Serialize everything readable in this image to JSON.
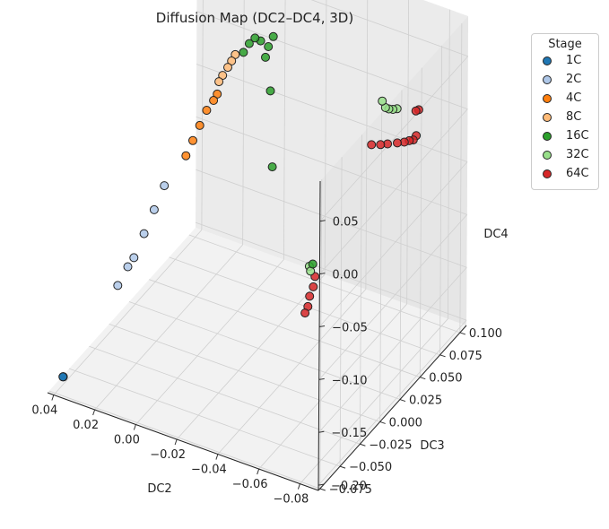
{
  "chart_data": {
    "type": "scatter",
    "projection": "3d",
    "title": "Diffusion Map (DC2–DC4, 3D)",
    "xlabel": "DC2",
    "ylabel": "DC3",
    "zlabel": "DC4",
    "xticks": [
      "−0.08",
      "−0.06",
      "−0.04",
      "−0.02",
      "0.00",
      "0.02",
      "0.04"
    ],
    "yticks": [
      "−0.075",
      "−0.050",
      "−0.025",
      "0.000",
      "0.025",
      "0.050",
      "0.075",
      "0.100"
    ],
    "zticks": [
      "−0.20",
      "−0.15",
      "−0.10",
      "−0.05",
      "0.00",
      "0.05"
    ],
    "grid": true,
    "legend": {
      "title": "Stage",
      "placement": "outside top-right"
    },
    "series": [
      {
        "name": "1C",
        "color": "#1f77b4",
        "points": [
          [
            0.04,
            -0.065,
            -0.198
          ],
          [
            0.0405,
            -0.064,
            -0.199
          ],
          [
            0.0398,
            -0.066,
            -0.197
          ]
        ]
      },
      {
        "name": "2C",
        "color": "#aec7e8",
        "points": [
          [
            0.032,
            0.04,
            -0.1
          ],
          [
            0.033,
            0.03,
            -0.115
          ],
          [
            0.034,
            0.02,
            -0.13
          ],
          [
            0.035,
            0.01,
            -0.145
          ],
          [
            0.036,
            0.005,
            -0.15
          ],
          [
            0.037,
            -0.005,
            -0.16
          ]
        ]
      },
      {
        "name": "4C",
        "color": "#ff7f0e",
        "points": [
          [
            0.022,
            0.08,
            -0.04
          ],
          [
            0.024,
            0.072,
            -0.05
          ],
          [
            0.025,
            0.066,
            -0.06
          ],
          [
            0.026,
            0.06,
            -0.07
          ],
          [
            0.027,
            0.054,
            -0.08
          ],
          [
            0.023,
            0.078,
            -0.045
          ]
        ]
      },
      {
        "name": "8C",
        "color": "#ffbb78",
        "points": [
          [
            0.018,
            0.092,
            -0.01
          ],
          [
            0.02,
            0.088,
            -0.02
          ],
          [
            0.021,
            0.084,
            -0.025
          ],
          [
            0.022,
            0.082,
            -0.03
          ],
          [
            0.019,
            0.09,
            -0.015
          ]
        ]
      },
      {
        "name": "16C",
        "color": "#2ca02c",
        "points": [
          [
            0.005,
            0.1,
            0.0
          ],
          [
            0.008,
            0.098,
            0.005
          ],
          [
            0.01,
            0.096,
            0.008
          ],
          [
            0.012,
            0.094,
            0.003
          ],
          [
            0.006,
            0.099,
            -0.01
          ],
          [
            0.014,
            0.092,
            -0.005
          ],
          [
            0.0,
            0.09,
            -0.03
          ],
          [
            -0.005,
            0.08,
            -0.09
          ],
          [
            0.003,
            0.101,
            0.01
          ],
          [
            -0.052,
            0.01,
            -0.09
          ]
        ]
      },
      {
        "name": "32C",
        "color": "#98df8a",
        "points": [
          [
            -0.074,
            0.058,
            0.032
          ],
          [
            -0.072,
            0.058,
            0.03
          ],
          [
            -0.07,
            0.058,
            0.029
          ],
          [
            -0.068,
            0.059,
            0.028
          ],
          [
            -0.066,
            0.06,
            0.032
          ],
          [
            -0.049,
            0.015,
            -0.103
          ],
          [
            -0.048,
            0.016,
            -0.1
          ]
        ]
      },
      {
        "name": "64C",
        "color": "#d62728",
        "points": [
          [
            -0.083,
            0.059,
            0.012
          ],
          [
            -0.082,
            0.058,
            0.008
          ],
          [
            -0.08,
            0.058,
            0.006
          ],
          [
            -0.078,
            0.057,
            0.004
          ],
          [
            -0.075,
            0.056,
            0.002
          ],
          [
            -0.071,
            0.054,
            0.0
          ],
          [
            -0.068,
            0.053,
            -0.002
          ],
          [
            -0.064,
            0.052,
            -0.004
          ],
          [
            -0.083,
            0.062,
            0.034
          ],
          [
            -0.082,
            0.061,
            0.033
          ],
          [
            -0.05,
            0.018,
            -0.11
          ],
          [
            -0.05,
            0.016,
            -0.118
          ],
          [
            -0.049,
            0.014,
            -0.126
          ],
          [
            -0.049,
            0.012,
            -0.134
          ],
          [
            -0.048,
            0.011,
            -0.14
          ]
        ]
      }
    ]
  }
}
